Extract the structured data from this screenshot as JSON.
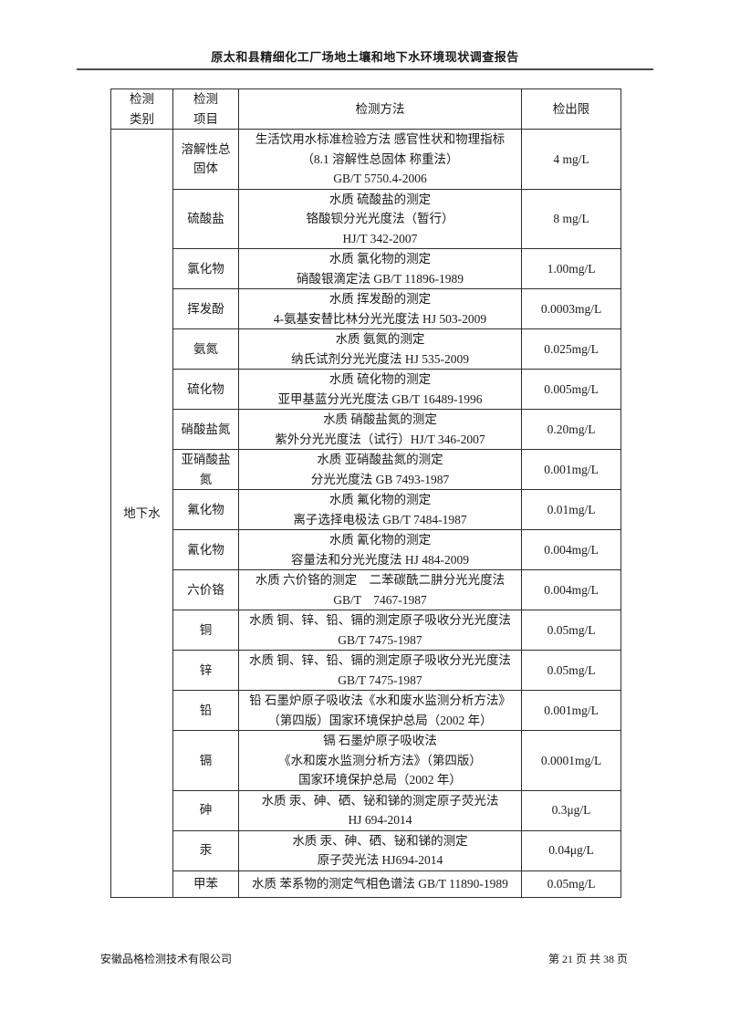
{
  "header": {
    "title": "原太和县精细化工厂场地土壤和地下水环境现状调查报告"
  },
  "table": {
    "col_headers": {
      "category": "检测\n类别",
      "item": "检测\n项目",
      "method": "检测方法",
      "limit": "检出限"
    },
    "category": "地下水",
    "rows": [
      {
        "item": "溶解性总\n固体",
        "method": "生活饮用水标准检验方法 感官性状和物理指标\n（8.1 溶解性总固体 称重法）\nGB/T 5750.4-2006",
        "limit": "4 mg/L"
      },
      {
        "item": "硫酸盐",
        "method": "水质 硫酸盐的测定\n铬酸钡分光光度法（暂行）\nHJ/T 342-2007",
        "limit": "8 mg/L"
      },
      {
        "item": "氯化物",
        "method": "水质 氯化物的测定\n硝酸银滴定法 GB/T 11896-1989",
        "limit": "1.00mg/L"
      },
      {
        "item": "挥发酚",
        "method": "水质 挥发酚的测定\n4-氨基安替比林分光光度法 HJ 503-2009",
        "limit": "0.0003mg/L"
      },
      {
        "item": "氨氮",
        "method": "水质 氨氮的测定\n纳氏试剂分光光度法 HJ 535-2009",
        "limit": "0.025mg/L"
      },
      {
        "item": "硫化物",
        "method": "水质 硫化物的测定\n亚甲基蓝分光光度法 GB/T 16489-1996",
        "limit": "0.005mg/L"
      },
      {
        "item": "硝酸盐氮",
        "method": "水质 硝酸盐氮的测定\n紫外分光光度法（试行）HJ/T 346-2007",
        "limit": "0.20mg/L"
      },
      {
        "item": "亚硝酸盐\n氮",
        "method": "水质 亚硝酸盐氮的测定\n分光光度法 GB 7493-1987",
        "limit": "0.001mg/L"
      },
      {
        "item": "氟化物",
        "method": "水质 氟化物的测定\n离子选择电极法 GB/T 7484-1987",
        "limit": "0.01mg/L"
      },
      {
        "item": "氰化物",
        "method": "水质 氰化物的测定\n容量法和分光光度法 HJ 484-2009",
        "limit": "0.004mg/L"
      },
      {
        "item": "六价铬",
        "method": "水质 六价铬的测定　二苯碳酰二肼分光光度法\nGB/T　7467-1987",
        "limit": "0.004mg/L"
      },
      {
        "item": "铜",
        "method": "水质 铜、锌、铅、镉的测定原子吸收分光光度法\nGB/T 7475-1987",
        "limit": "0.05mg/L"
      },
      {
        "item": "锌",
        "method": "水质 铜、锌、铅、镉的测定原子吸收分光光度法\nGB/T 7475-1987",
        "limit": "0.05mg/L"
      },
      {
        "item": "铅",
        "method": "铅 石墨炉原子吸收法《水和废水监测分析方法》\n（第四版）国家环境保护总局（2002 年）",
        "limit": "0.001mg/L"
      },
      {
        "item": "镉",
        "method": "镉 石墨炉原子吸收法\n《水和废水监测分析方法》（第四版）\n国家环境保护总局（2002 年）",
        "limit": "0.0001mg/L"
      },
      {
        "item": "砷",
        "method": "水质 汞、砷、硒、铋和锑的测定原子荧光法\nHJ 694-2014",
        "limit": "0.3μg/L"
      },
      {
        "item": "汞",
        "method": "水质 汞、砷、硒、铋和锑的测定\n原子荧光法 HJ694-2014",
        "limit": "0.04μg/L"
      },
      {
        "item": "甲苯",
        "method": "水质 苯系物的测定气相色谱法 GB/T 11890-1989",
        "limit": "0.05mg/L"
      }
    ]
  },
  "footer": {
    "company": "安徽品格检测技术有限公司",
    "page_info": "第 21 页 共 38 页"
  }
}
